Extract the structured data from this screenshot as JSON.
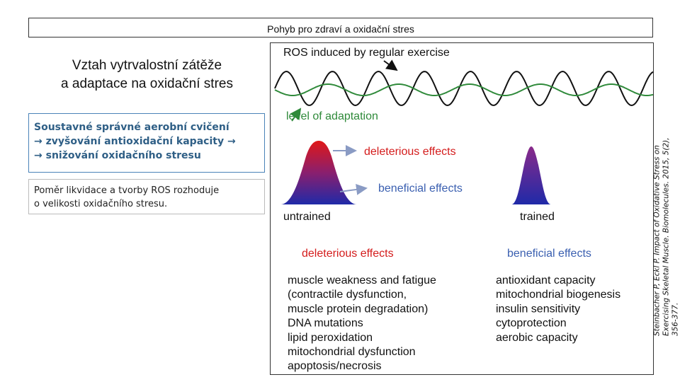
{
  "header": {
    "title": "Pohyb pro zdraví a oxidační stres"
  },
  "main": {
    "title_line1": "Vztah vytrvalostní zátěže",
    "title_line2": "a adaptace na oxidační stres",
    "box1": {
      "line1": "Soustavné správné aerobní cvičení",
      "line2": "→ zvyšování antioxidační kapacity →",
      "line3": "→ snižování oxidačního stresu"
    },
    "box2": {
      "line1": "Poměr likvidace a tvorby ROS rozhoduje",
      "line2": "o velikosti oxidačního stresu."
    }
  },
  "figure": {
    "ros_label": "ROS induced by regular exercise",
    "adaptation_label": "level of adaptation",
    "deleterious_arrow_label": "deleterious effects",
    "beneficial_arrow_label": "beneficial effects",
    "untrained_label": "untrained",
    "trained_label": "trained",
    "deleterious_heading": "deleterious effects",
    "beneficial_heading": "beneficial effects",
    "deleterious_items": [
      "muscle weakness and fatigue",
      "(contractile dysfunction,",
      "muscle protein degradation)",
      "DNA mutations",
      "lipid peroxidation",
      "mitochondrial dysfunction",
      "apoptosis/necrosis"
    ],
    "beneficial_items": [
      "antioxidant capacity",
      "mitochondrial biogenesis",
      "insulin sensitivity",
      "cytoprotection",
      "aerobic capacity"
    ],
    "colors": {
      "green": "#2f8a3a",
      "red": "#d41c1c",
      "blue": "#3a5fb0",
      "arrow_gray": "#8a9bc4"
    }
  },
  "citation": "Steinbacher P, Eckl P. Impact of Oxidative Stress on Exercising Skeletal Muscle. Biomolecules. 2015, 5(2), 356-377."
}
